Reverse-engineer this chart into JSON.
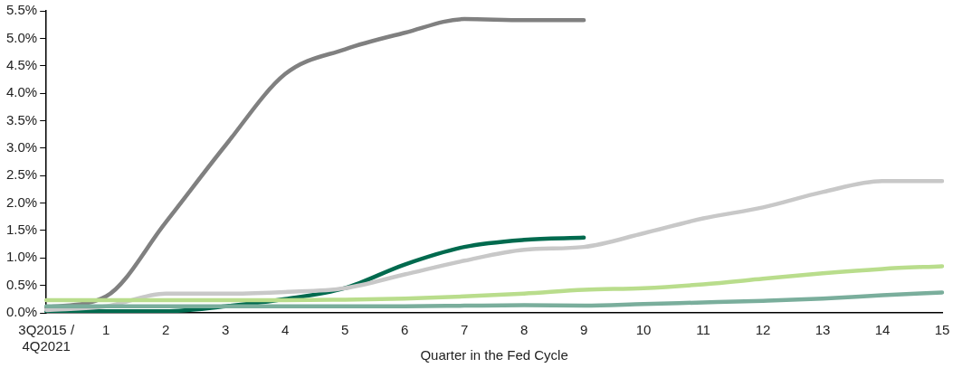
{
  "chart_data": {
    "type": "line",
    "xlabel": "Quarter in the Fed Cycle",
    "categories": [
      "3Q2015 / 4Q2021",
      "1",
      "2",
      "3",
      "4",
      "5",
      "6",
      "7",
      "8",
      "9",
      "10",
      "11",
      "12",
      "13",
      "14",
      "15"
    ],
    "ylim": [
      0,
      5.5
    ],
    "yticks": [
      {
        "value": 0,
        "label": "0.0%"
      },
      {
        "value": 0.5,
        "label": "0.5%"
      },
      {
        "value": 1,
        "label": "1.0%"
      },
      {
        "value": 1.5,
        "label": "1.5%"
      },
      {
        "value": 2,
        "label": "2.0%"
      },
      {
        "value": 2.5,
        "label": "2.5%"
      },
      {
        "value": 3,
        "label": "3.0%"
      },
      {
        "value": 3.5,
        "label": "3.5%"
      },
      {
        "value": 4,
        "label": "4.0%"
      },
      {
        "value": 4.5,
        "label": "4.5%"
      },
      {
        "value": 5,
        "label": "5.0%"
      },
      {
        "value": 5.5,
        "label": "5.5%"
      }
    ],
    "grid": false,
    "legend": false,
    "marker": "none",
    "line_style": "solid",
    "series": [
      {
        "color": "#7aae9c",
        "values": [
          0.12,
          0.12,
          0.12,
          0.12,
          0.12,
          0.12,
          0.12,
          0.13,
          0.14,
          0.13,
          0.16,
          0.19,
          0.22,
          0.26,
          0.32,
          0.37
        ]
      },
      {
        "color": "#b9dd8c",
        "values": [
          0.23,
          0.23,
          0.23,
          0.23,
          0.23,
          0.24,
          0.26,
          0.3,
          0.35,
          0.42,
          0.45,
          0.52,
          0.62,
          0.72,
          0.8,
          0.85
        ]
      },
      {
        "color": "#c8c8c8",
        "values": [
          0.05,
          0.12,
          0.35,
          0.35,
          0.38,
          0.45,
          0.7,
          0.95,
          1.15,
          1.2,
          1.45,
          1.72,
          1.92,
          2.2,
          2.4,
          2.4
        ]
      },
      {
        "color": "#808080",
        "values": [
          0.1,
          0.3,
          1.65,
          3.05,
          4.35,
          4.8,
          5.1,
          5.35,
          5.33,
          5.33,
          null,
          null,
          null,
          null,
          null,
          null
        ]
      },
      {
        "color": "#006a4e",
        "values": [
          0.03,
          0.03,
          0.03,
          0.12,
          0.25,
          0.45,
          0.88,
          1.2,
          1.33,
          1.37,
          null,
          null,
          null,
          null,
          null,
          null
        ]
      }
    ]
  }
}
